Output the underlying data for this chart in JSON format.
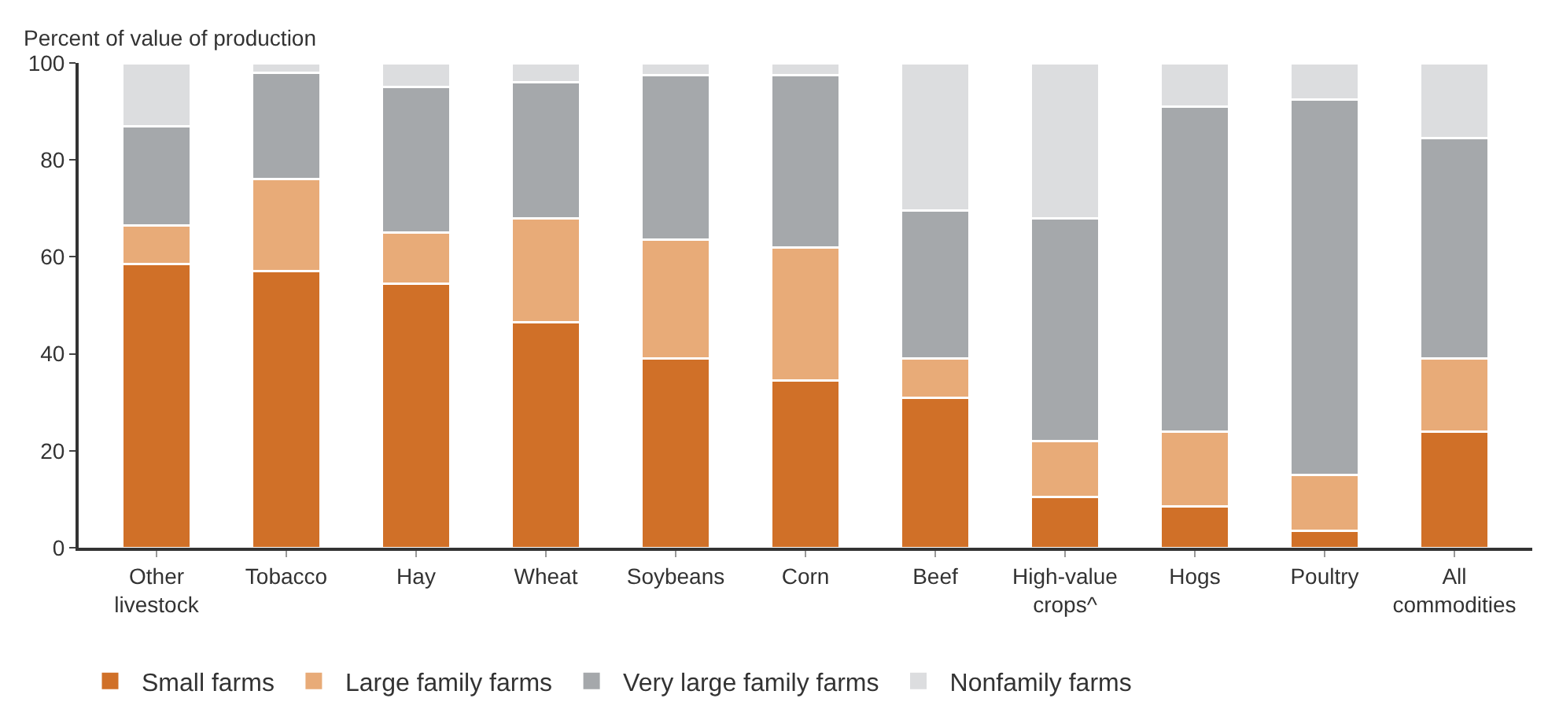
{
  "chart_data": {
    "type": "bar",
    "stacked": true,
    "ylabel": "Percent of value of production",
    "categories": [
      "Other livestock",
      "Tobacco",
      "Hay",
      "Wheat",
      "Soybeans",
      "Corn",
      "Beef",
      "High-value crops^",
      "Hogs",
      "Poultry",
      "All commodities"
    ],
    "series": [
      {
        "name": "Small farms",
        "color": "#d07028",
        "values": [
          58.5,
          57,
          54.5,
          46.5,
          39,
          34.5,
          31,
          10.5,
          8.5,
          3.5,
          24
        ]
      },
      {
        "name": "Large family farms",
        "color": "#e8ab78",
        "values": [
          8,
          19,
          10.5,
          21.5,
          24.5,
          27.5,
          8,
          11.5,
          15.5,
          11.5,
          15
        ]
      },
      {
        "name": "Very large family farms",
        "color": "#a5a8ab",
        "values": [
          20.5,
          22,
          30,
          28,
          34,
          35.5,
          30.5,
          46,
          67,
          77.5,
          45.5
        ]
      },
      {
        "name": "Nonfamily farms",
        "color": "#dcdddf",
        "values": [
          13,
          2,
          5,
          4,
          2.5,
          2.5,
          30.5,
          32,
          9,
          7.5,
          15.5
        ]
      }
    ],
    "ylim": [
      0,
      100
    ],
    "yticks": [
      0,
      20,
      40,
      60,
      80,
      100
    ],
    "legend": "bottom"
  }
}
